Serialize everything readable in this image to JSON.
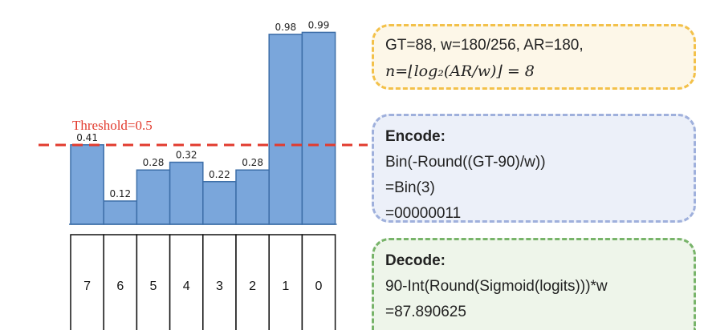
{
  "chart_data": {
    "type": "bar",
    "categories": [
      "7",
      "6",
      "5",
      "4",
      "3",
      "2",
      "1",
      "0"
    ],
    "values": [
      0.41,
      0.12,
      0.28,
      0.32,
      0.22,
      0.28,
      0.98,
      0.99
    ],
    "value_labels": [
      "0.41",
      "0.12",
      "0.28",
      "0.32",
      "0.22",
      "0.28",
      "0.98",
      "0.99"
    ],
    "threshold": 0.5,
    "threshold_label": "Threshold=0.5",
    "bar_color": "#7aa6db",
    "bar_edge_color": "#3d6ea8",
    "threshold_color": "#e23b2e",
    "ylim": [
      0,
      1
    ]
  },
  "info": {
    "line1": "GT=88, w=180/256, AR=180,",
    "line2_prefix": "n=",
    "line2_math": "⌊log₂(AR/w)⌋ = 8"
  },
  "encode": {
    "title": "Encode:",
    "lines": [
      "Bin(-Round((GT-90)/w))",
      "=Bin(3)",
      "=00000011"
    ]
  },
  "decode": {
    "title": "Decode:",
    "lines": [
      "90-Int(Round(Sigmoid(logits)))*w",
      "=87.890625"
    ]
  },
  "colors": {
    "info_border": "#f3c14a",
    "encode_border": "#9fb0dc",
    "decode_border": "#78b46a"
  }
}
